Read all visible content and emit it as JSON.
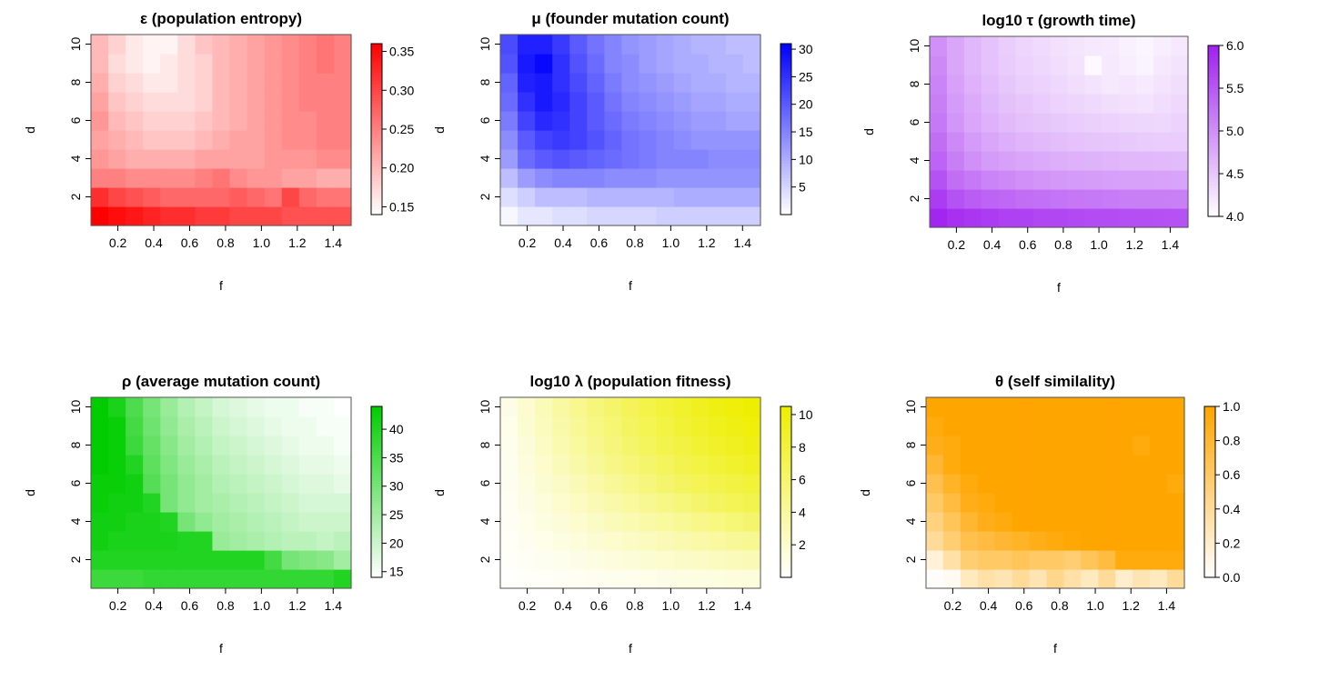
{
  "chart_data": [
    {
      "type": "heatmap",
      "title": "ε (population entropy)",
      "xlabel": "f",
      "ylabel": "d",
      "x_ticks": [
        "0.2",
        "0.4",
        "0.6",
        "0.8",
        "1.0",
        "1.2",
        "1.4"
      ],
      "y_ticks": [
        "2",
        "4",
        "6",
        "8",
        "10"
      ],
      "xlim": [
        0.05,
        1.5
      ],
      "ylim": [
        0.5,
        10.5
      ],
      "colorbar": {
        "min": 0.14,
        "max": 0.36,
        "ticks": [
          "0.15",
          "0.20",
          "0.25",
          "0.30",
          "0.35"
        ],
        "low_color": "#ffffff",
        "high_color": "#ff0000"
      },
      "values": [
        [
          0.36,
          0.35,
          0.34,
          0.33,
          0.32,
          0.32,
          0.31,
          0.31,
          0.3,
          0.3,
          0.3,
          0.29,
          0.29,
          0.29,
          0.29
        ],
        [
          0.32,
          0.3,
          0.29,
          0.28,
          0.27,
          0.27,
          0.27,
          0.27,
          0.28,
          0.27,
          0.26,
          0.3,
          0.27,
          0.26,
          0.26
        ],
        [
          0.25,
          0.25,
          0.24,
          0.24,
          0.24,
          0.24,
          0.25,
          0.26,
          0.24,
          0.23,
          0.23,
          0.22,
          0.22,
          0.21,
          0.21
        ],
        [
          0.23,
          0.22,
          0.21,
          0.21,
          0.21,
          0.21,
          0.22,
          0.22,
          0.22,
          0.22,
          0.23,
          0.23,
          0.23,
          0.24,
          0.24
        ],
        [
          0.22,
          0.21,
          0.2,
          0.19,
          0.19,
          0.19,
          0.2,
          0.21,
          0.22,
          0.22,
          0.23,
          0.24,
          0.24,
          0.25,
          0.25
        ],
        [
          0.23,
          0.2,
          0.19,
          0.18,
          0.18,
          0.18,
          0.19,
          0.2,
          0.21,
          0.22,
          0.23,
          0.24,
          0.24,
          0.25,
          0.25
        ],
        [
          0.22,
          0.19,
          0.18,
          0.17,
          0.17,
          0.17,
          0.18,
          0.2,
          0.21,
          0.22,
          0.23,
          0.24,
          0.25,
          0.25,
          0.25
        ],
        [
          0.21,
          0.18,
          0.17,
          0.16,
          0.16,
          0.17,
          0.18,
          0.2,
          0.21,
          0.22,
          0.23,
          0.24,
          0.25,
          0.25,
          0.25
        ],
        [
          0.2,
          0.17,
          0.16,
          0.15,
          0.16,
          0.17,
          0.18,
          0.2,
          0.21,
          0.22,
          0.23,
          0.24,
          0.25,
          0.26,
          0.25
        ],
        [
          0.2,
          0.18,
          0.16,
          0.15,
          0.15,
          0.17,
          0.19,
          0.2,
          0.21,
          0.22,
          0.23,
          0.24,
          0.25,
          0.26,
          0.25
        ]
      ]
    },
    {
      "type": "heatmap",
      "title": "μ (founder mutation count)",
      "xlabel": "f",
      "ylabel": "d",
      "x_ticks": [
        "0.2",
        "0.4",
        "0.6",
        "0.8",
        "1.0",
        "1.2",
        "1.4"
      ],
      "y_ticks": [
        "2",
        "4",
        "6",
        "8",
        "10"
      ],
      "xlim": [
        0.05,
        1.5
      ],
      "ylim": [
        0.5,
        10.5
      ],
      "colorbar": {
        "min": 0,
        "max": 31,
        "ticks": [
          "5",
          "10",
          "15",
          "20",
          "25",
          "30"
        ],
        "low_color": "#ffffff",
        "high_color": "#0000ff"
      },
      "values": [
        [
          1,
          3,
          3,
          4,
          4,
          5,
          5,
          5,
          5,
          6,
          6,
          6,
          6,
          6,
          6
        ],
        [
          4,
          6,
          8,
          8,
          8,
          9,
          9,
          9,
          9,
          9,
          10,
          10,
          10,
          10,
          10
        ],
        [
          8,
          12,
          14,
          15,
          15,
          15,
          14,
          14,
          14,
          13,
          13,
          13,
          13,
          13,
          13
        ],
        [
          12,
          18,
          20,
          21,
          20,
          19,
          18,
          17,
          16,
          15,
          15,
          15,
          14,
          14,
          14
        ],
        [
          14,
          20,
          23,
          24,
          23,
          21,
          19,
          17,
          16,
          15,
          14,
          13,
          13,
          13,
          13
        ],
        [
          16,
          23,
          26,
          25,
          23,
          20,
          18,
          16,
          15,
          14,
          13,
          12,
          12,
          11,
          11
        ],
        [
          18,
          25,
          28,
          26,
          23,
          20,
          17,
          15,
          14,
          13,
          12,
          11,
          11,
          10,
          10
        ],
        [
          19,
          27,
          28,
          25,
          22,
          19,
          16,
          14,
          13,
          12,
          11,
          10,
          10,
          9,
          9
        ],
        [
          21,
          28,
          30,
          25,
          21,
          18,
          15,
          14,
          12,
          11,
          10,
          10,
          9,
          9,
          8
        ],
        [
          22,
          27,
          27,
          24,
          20,
          17,
          15,
          13,
          12,
          11,
          10,
          9,
          9,
          8,
          8
        ]
      ]
    },
    {
      "type": "heatmap",
      "title": "log10 τ (growth time)",
      "xlabel": "f",
      "ylabel": "d",
      "x_ticks": [
        "0.2",
        "0.4",
        "0.6",
        "0.8",
        "1.0",
        "1.2",
        "1.4"
      ],
      "y_ticks": [
        "2",
        "4",
        "6",
        "8",
        "10"
      ],
      "xlim": [
        0.05,
        1.5
      ],
      "ylim": [
        0.5,
        10.5
      ],
      "colorbar": {
        "min": 4.0,
        "max": 6.0,
        "ticks": [
          "4.0",
          "4.5",
          "5.0",
          "5.5",
          "6.0"
        ],
        "low_color": "#ffffff",
        "high_color": "#a020f0"
      },
      "values": [
        [
          5.95,
          5.85,
          5.8,
          5.75,
          5.7,
          5.7,
          5.65,
          5.65,
          5.62,
          5.6,
          5.6,
          5.58,
          5.57,
          5.56,
          5.55
        ],
        [
          5.75,
          5.55,
          5.45,
          5.4,
          5.35,
          5.3,
          5.28,
          5.25,
          5.22,
          5.2,
          5.18,
          5.16,
          5.15,
          5.15,
          5.14
        ],
        [
          5.55,
          5.3,
          5.2,
          5.1,
          5.05,
          5.0,
          4.95,
          4.92,
          4.9,
          4.88,
          4.86,
          4.85,
          4.84,
          4.83,
          4.82
        ],
        [
          5.4,
          5.15,
          5.0,
          4.9,
          4.85,
          4.8,
          4.75,
          4.72,
          4.7,
          4.68,
          4.66,
          4.64,
          4.63,
          4.62,
          4.61
        ],
        [
          5.3,
          5.05,
          4.9,
          4.8,
          4.72,
          4.66,
          4.62,
          4.58,
          4.55,
          4.52,
          4.5,
          4.48,
          4.46,
          4.45,
          4.45
        ],
        [
          5.2,
          4.95,
          4.8,
          4.7,
          4.62,
          4.56,
          4.52,
          4.48,
          4.45,
          4.42,
          4.4,
          4.38,
          4.36,
          4.35,
          4.4
        ],
        [
          5.15,
          4.9,
          4.75,
          4.65,
          4.56,
          4.5,
          4.45,
          4.4,
          4.37,
          4.34,
          4.3,
          4.28,
          4.25,
          4.3,
          4.35
        ],
        [
          5.1,
          4.85,
          4.7,
          4.6,
          4.5,
          4.44,
          4.4,
          4.35,
          4.3,
          4.25,
          4.2,
          4.22,
          4.18,
          4.25,
          4.3
        ],
        [
          5.05,
          4.8,
          4.65,
          4.55,
          4.46,
          4.4,
          4.35,
          4.3,
          4.25,
          4.05,
          4.2,
          4.15,
          4.1,
          4.2,
          4.25
        ],
        [
          5.0,
          4.8,
          4.65,
          4.55,
          4.45,
          4.38,
          4.32,
          4.28,
          4.24,
          4.2,
          4.18,
          4.12,
          4.08,
          4.15,
          4.2
        ]
      ]
    },
    {
      "type": "heatmap",
      "title": "ρ (average mutation count)",
      "xlabel": "f",
      "ylabel": "d",
      "x_ticks": [
        "0.2",
        "0.4",
        "0.6",
        "0.8",
        "1.0",
        "1.2",
        "1.4"
      ],
      "y_ticks": [
        "2",
        "4",
        "6",
        "8",
        "10"
      ],
      "xlim": [
        0.05,
        1.5
      ],
      "ylim": [
        0.5,
        10.5
      ],
      "colorbar": {
        "min": 14,
        "max": 44,
        "ticks": [
          "15",
          "20",
          "25",
          "30",
          "35",
          "40"
        ],
        "low_color": "#ffffff",
        "high_color": "#00cd00"
      },
      "values": [
        [
          37,
          37,
          37,
          38,
          38,
          38,
          38,
          38,
          38,
          38,
          38,
          38,
          38,
          38,
          40
        ],
        [
          40,
          40,
          40,
          40,
          40,
          40,
          40,
          40,
          40,
          40,
          36,
          30,
          29,
          28,
          25
        ],
        [
          42,
          41,
          41,
          41,
          41,
          40,
          40,
          26,
          25,
          24,
          23,
          22,
          22,
          21,
          22
        ],
        [
          42,
          42,
          41,
          41,
          40,
          30,
          27,
          25,
          24,
          23,
          22,
          21,
          20,
          20,
          20
        ],
        [
          43,
          42,
          42,
          40,
          30,
          27,
          25,
          24,
          23,
          22,
          21,
          20,
          19,
          19,
          19
        ],
        [
          43,
          43,
          42,
          34,
          30,
          27,
          25,
          23,
          22,
          21,
          20,
          19,
          18,
          18,
          17
        ],
        [
          44,
          43,
          40,
          33,
          29,
          26,
          24,
          22,
          21,
          20,
          19,
          18,
          17,
          17,
          16
        ],
        [
          44,
          43,
          37,
          32,
          28,
          25,
          23,
          21,
          20,
          19,
          18,
          17,
          16,
          16,
          15
        ],
        [
          44,
          43,
          36,
          31,
          27,
          24,
          22,
          20,
          19,
          18,
          17,
          16,
          16,
          15,
          15
        ],
        [
          44,
          41,
          35,
          30,
          26,
          23,
          21,
          19,
          18,
          17,
          16,
          16,
          15,
          15,
          14
        ]
      ]
    },
    {
      "type": "heatmap",
      "title": "log10 λ (population fitness)",
      "xlabel": "f",
      "ylabel": "d",
      "x_ticks": [
        "0.2",
        "0.4",
        "0.6",
        "0.8",
        "1.0",
        "1.2",
        "1.4"
      ],
      "y_ticks": [
        "2",
        "4",
        "6",
        "8",
        "10"
      ],
      "xlim": [
        0.05,
        1.5
      ],
      "ylim": [
        0.5,
        10.5
      ],
      "colorbar": {
        "min": 0,
        "max": 10.5,
        "ticks": [
          "2",
          "4",
          "6",
          "8",
          "10"
        ],
        "low_color": "#ffffff",
        "high_color": "#eeee00"
      },
      "values": [
        [
          0.1,
          0.2,
          0.3,
          0.4,
          0.5,
          0.6,
          0.7,
          0.8,
          0.9,
          1.0,
          1.1,
          1.2,
          1.3,
          1.4,
          1.5
        ],
        [
          0.2,
          0.4,
          0.6,
          0.8,
          1.0,
          1.2,
          1.4,
          1.6,
          1.8,
          2.0,
          2.2,
          2.4,
          2.6,
          2.8,
          3.0
        ],
        [
          0.3,
          0.6,
          0.9,
          1.2,
          1.5,
          1.8,
          2.1,
          2.4,
          2.7,
          3.0,
          3.3,
          3.6,
          3.9,
          4.2,
          4.5
        ],
        [
          0.4,
          0.8,
          1.2,
          1.6,
          2.0,
          2.4,
          2.8,
          3.2,
          3.6,
          4.0,
          4.4,
          4.8,
          5.2,
          5.6,
          6.0
        ],
        [
          0.5,
          1.0,
          1.5,
          2.0,
          2.5,
          3.0,
          3.5,
          4.0,
          4.5,
          5.0,
          5.5,
          6.0,
          6.5,
          6.9,
          7.2
        ],
        [
          0.6,
          1.2,
          1.8,
          2.4,
          3.0,
          3.6,
          4.2,
          4.8,
          5.4,
          6.0,
          6.5,
          7.0,
          7.4,
          7.8,
          8.2
        ],
        [
          0.7,
          1.4,
          2.1,
          2.8,
          3.5,
          4.2,
          4.9,
          5.5,
          6.1,
          6.7,
          7.2,
          7.7,
          8.2,
          8.6,
          9.0
        ],
        [
          0.8,
          1.6,
          2.4,
          3.2,
          4.0,
          4.7,
          5.4,
          6.1,
          6.7,
          7.3,
          7.8,
          8.3,
          8.8,
          9.2,
          9.6
        ],
        [
          0.9,
          1.8,
          2.7,
          3.5,
          4.3,
          5.1,
          5.8,
          6.5,
          7.1,
          7.7,
          8.3,
          8.8,
          9.3,
          9.7,
          10.1
        ],
        [
          1.0,
          2.0,
          2.9,
          3.8,
          4.6,
          5.4,
          6.1,
          6.8,
          7.5,
          8.1,
          8.7,
          9.2,
          9.7,
          10.1,
          10.4
        ]
      ]
    },
    {
      "type": "heatmap",
      "title": "θ (self similality)",
      "xlabel": "f",
      "ylabel": "d",
      "x_ticks": [
        "0.2",
        "0.4",
        "0.6",
        "0.8",
        "1.0",
        "1.2",
        "1.4"
      ],
      "y_ticks": [
        "2",
        "4",
        "6",
        "8",
        "10"
      ],
      "xlim": [
        0.05,
        1.5
      ],
      "ylim": [
        0.5,
        10.5
      ],
      "colorbar": {
        "min": 0.0,
        "max": 1.0,
        "ticks": [
          "0.0",
          "0.2",
          "0.4",
          "0.6",
          "0.8",
          "1.0"
        ],
        "low_color": "#ffffff",
        "high_color": "#ffa500"
      },
      "values": [
        [
          0.02,
          0.05,
          0.25,
          0.35,
          0.3,
          0.4,
          0.3,
          0.45,
          0.35,
          0.25,
          0.4,
          0.2,
          0.3,
          0.25,
          0.4
        ],
        [
          0.15,
          0.35,
          0.55,
          0.6,
          0.6,
          0.65,
          0.6,
          0.6,
          0.55,
          0.65,
          0.75,
          0.95,
          0.95,
          0.95,
          0.95
        ],
        [
          0.4,
          0.55,
          0.7,
          0.75,
          0.8,
          0.85,
          0.9,
          0.95,
          0.98,
          1.0,
          1.0,
          1.0,
          1.0,
          1.0,
          1.0
        ],
        [
          0.5,
          0.65,
          0.8,
          0.9,
          0.95,
          1.0,
          1.0,
          1.0,
          1.0,
          1.0,
          1.0,
          1.0,
          1.0,
          1.0,
          1.0
        ],
        [
          0.6,
          0.75,
          0.9,
          0.95,
          1.0,
          1.0,
          1.0,
          1.0,
          1.0,
          1.0,
          1.0,
          1.0,
          1.0,
          1.0,
          1.0
        ],
        [
          0.7,
          0.85,
          0.95,
          1.0,
          1.0,
          1.0,
          1.0,
          1.0,
          1.0,
          1.0,
          1.0,
          1.0,
          1.0,
          1.0,
          0.95
        ],
        [
          0.8,
          0.95,
          1.0,
          1.0,
          1.0,
          1.0,
          1.0,
          1.0,
          1.0,
          1.0,
          1.0,
          1.0,
          1.0,
          1.0,
          1.0
        ],
        [
          0.9,
          0.95,
          1.0,
          1.0,
          1.0,
          1.0,
          1.0,
          1.0,
          1.0,
          1.0,
          1.0,
          1.0,
          0.95,
          1.0,
          1.0
        ],
        [
          0.95,
          1.0,
          1.0,
          1.0,
          1.0,
          1.0,
          1.0,
          1.0,
          1.0,
          1.0,
          1.0,
          1.0,
          1.0,
          1.0,
          1.0
        ],
        [
          1.0,
          1.0,
          1.0,
          1.0,
          1.0,
          1.0,
          1.0,
          1.0,
          1.0,
          1.0,
          1.0,
          1.0,
          1.0,
          1.0,
          1.0
        ]
      ]
    }
  ]
}
